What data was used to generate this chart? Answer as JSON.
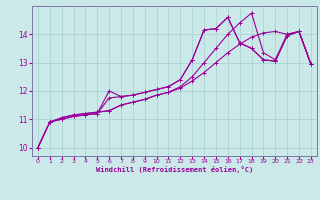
{
  "xlabel": "Windchill (Refroidissement éolien,°C)",
  "bg_color": "#cce9e9",
  "grid_color": "#aad4d4",
  "line_color": "#990099",
  "spine_color": "#7777aa",
  "xlim": [
    -0.5,
    23.5
  ],
  "ylim": [
    9.7,
    15.0
  ],
  "xticks": [
    0,
    1,
    2,
    3,
    4,
    5,
    6,
    7,
    8,
    9,
    10,
    11,
    12,
    13,
    14,
    15,
    16,
    17,
    18,
    19,
    20,
    21,
    22,
    23
  ],
  "yticks": [
    10,
    11,
    12,
    13,
    14
  ],
  "line1_x": [
    0,
    1,
    2,
    3,
    4,
    5,
    6,
    7,
    8,
    9,
    10,
    11,
    12,
    13,
    14,
    15,
    16,
    17,
    18,
    19,
    20,
    21,
    22,
    23
  ],
  "line1_y": [
    10.0,
    10.9,
    11.0,
    11.1,
    11.15,
    11.2,
    11.75,
    11.8,
    11.85,
    11.95,
    12.05,
    12.15,
    12.4,
    13.1,
    14.15,
    14.2,
    14.6,
    13.7,
    13.5,
    13.1,
    13.05,
    13.95,
    14.1,
    12.95
  ],
  "line2_x": [
    0,
    1,
    2,
    3,
    4,
    5,
    6,
    7,
    8,
    9,
    10,
    11,
    12,
    13,
    14,
    15,
    16,
    17,
    18,
    19,
    20,
    21,
    22,
    23
  ],
  "line2_y": [
    10.0,
    10.9,
    11.0,
    11.1,
    11.15,
    11.2,
    12.0,
    11.8,
    11.85,
    11.95,
    12.05,
    12.15,
    12.4,
    13.1,
    14.15,
    14.2,
    14.6,
    13.7,
    13.5,
    13.1,
    13.05,
    13.95,
    14.1,
    12.95
  ],
  "line3_x": [
    1,
    2,
    3,
    4,
    5,
    6,
    7,
    8,
    9,
    10,
    11,
    12,
    13,
    14,
    15,
    16,
    17,
    18,
    19,
    20,
    21,
    22,
    23
  ],
  "line3_y": [
    10.9,
    11.05,
    11.15,
    11.2,
    11.25,
    11.3,
    11.5,
    11.6,
    11.7,
    11.85,
    11.95,
    12.15,
    12.5,
    13.0,
    13.5,
    14.0,
    14.4,
    14.75,
    13.35,
    13.1,
    14.0,
    14.1,
    12.95
  ],
  "line4_x": [
    0,
    1,
    2,
    3,
    4,
    5,
    6,
    7,
    8,
    9,
    10,
    11,
    12,
    13,
    14,
    15,
    16,
    17,
    18,
    19,
    20,
    21,
    22,
    23
  ],
  "line4_y": [
    10.0,
    10.9,
    11.05,
    11.15,
    11.2,
    11.25,
    11.3,
    11.5,
    11.6,
    11.7,
    11.85,
    11.95,
    12.1,
    12.35,
    12.65,
    13.0,
    13.35,
    13.65,
    13.9,
    14.05,
    14.1,
    14.0,
    14.1,
    12.95
  ]
}
